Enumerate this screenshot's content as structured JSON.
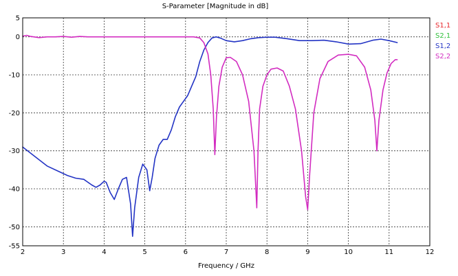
{
  "chart_data": {
    "type": "line",
    "title": "S-Parameter [Magnitude in dB]",
    "xlabel": "Frequency / GHz",
    "ylabel": "",
    "xlim": [
      2,
      12
    ],
    "ylim": [
      -55,
      5
    ],
    "xticks": [
      2,
      3,
      4,
      5,
      6,
      7,
      8,
      9,
      10,
      11,
      12
    ],
    "yticks": [
      5,
      0,
      -10,
      -20,
      -30,
      -40,
      -50,
      -55
    ],
    "grid": true,
    "legend_position": "right",
    "legend": [
      {
        "name": "S1,1",
        "color": "#e8282d"
      },
      {
        "name": "S2,1",
        "color": "#2fbf3a"
      },
      {
        "name": "S1,2",
        "color": "#2233c4"
      },
      {
        "name": "S2,2",
        "color": "#d22bc0"
      }
    ],
    "series": [
      {
        "name": "S1,2",
        "color": "#2233c4",
        "x": [
          2.0,
          2.3,
          2.6,
          2.9,
          3.1,
          3.3,
          3.5,
          3.7,
          3.8,
          3.9,
          4.0,
          4.05,
          4.15,
          4.25,
          4.35,
          4.45,
          4.55,
          4.65,
          4.7,
          4.75,
          4.85,
          4.95,
          5.05,
          5.12,
          5.18,
          5.25,
          5.35,
          5.45,
          5.55,
          5.65,
          5.75,
          5.85,
          5.95,
          6.05,
          6.15,
          6.25,
          6.35,
          6.45,
          6.55,
          6.65,
          6.75,
          6.85,
          7.0,
          7.2,
          7.4,
          7.6,
          7.8,
          8.0,
          8.2,
          8.5,
          8.8,
          9.1,
          9.4,
          9.7,
          10.0,
          10.3,
          10.6,
          10.8,
          11.0,
          11.2
        ],
        "values": [
          -29,
          -31.5,
          -34,
          -35.5,
          -36.5,
          -37.2,
          -37.5,
          -39,
          -39.6,
          -39,
          -38,
          -38.3,
          -41,
          -42.8,
          -40,
          -37.5,
          -37,
          -44,
          -52.5,
          -45,
          -37,
          -33.5,
          -35,
          -40.5,
          -37,
          -32,
          -28.5,
          -27,
          -27,
          -24.5,
          -21,
          -18.5,
          -17,
          -15.5,
          -13,
          -10.5,
          -6.5,
          -3.5,
          -1.5,
          -0.3,
          0,
          -0.3,
          -1,
          -1.3,
          -1,
          -0.5,
          -0.2,
          -0.1,
          -0.1,
          -0.5,
          -1,
          -1,
          -0.9,
          -1.3,
          -1.9,
          -1.8,
          -0.9,
          -0.6,
          -1,
          -1.5
        ]
      },
      {
        "name": "S2,2",
        "color": "#d22bc0",
        "x": [
          2.0,
          2.1,
          2.2,
          2.4,
          2.6,
          2.8,
          3.0,
          3.2,
          3.4,
          3.6,
          3.8,
          4.0,
          4.3,
          4.6,
          4.9,
          5.2,
          5.5,
          5.8,
          6.0,
          6.2,
          6.35,
          6.45,
          6.55,
          6.62,
          6.68,
          6.72,
          6.76,
          6.82,
          6.9,
          7.0,
          7.1,
          7.25,
          7.4,
          7.55,
          7.68,
          7.75,
          7.78,
          7.82,
          7.9,
          8.0,
          8.1,
          8.25,
          8.4,
          8.55,
          8.7,
          8.85,
          8.95,
          9.0,
          9.05,
          9.15,
          9.3,
          9.5,
          9.75,
          10.0,
          10.2,
          10.4,
          10.55,
          10.65,
          10.7,
          10.75,
          10.85,
          10.95,
          11.05,
          11.15,
          11.2
        ],
        "values": [
          0.2,
          0.4,
          0.1,
          -0.2,
          0,
          0,
          0.1,
          -0.1,
          0.1,
          0,
          0,
          0,
          0,
          0,
          0,
          0,
          0,
          0,
          0,
          0,
          -0.3,
          -1.5,
          -4.5,
          -10,
          -19,
          -31,
          -21,
          -13,
          -8,
          -5.5,
          -5.4,
          -6.5,
          -10,
          -17,
          -30,
          -45,
          -30,
          -19,
          -13,
          -10,
          -8.5,
          -8.2,
          -9,
          -13,
          -19,
          -30,
          -42,
          -45.5,
          -36,
          -20,
          -11,
          -6.5,
          -4.8,
          -4.6,
          -5,
          -8,
          -14,
          -22,
          -30,
          -22,
          -14,
          -9.5,
          -7,
          -6,
          -6
        ]
      }
    ]
  }
}
